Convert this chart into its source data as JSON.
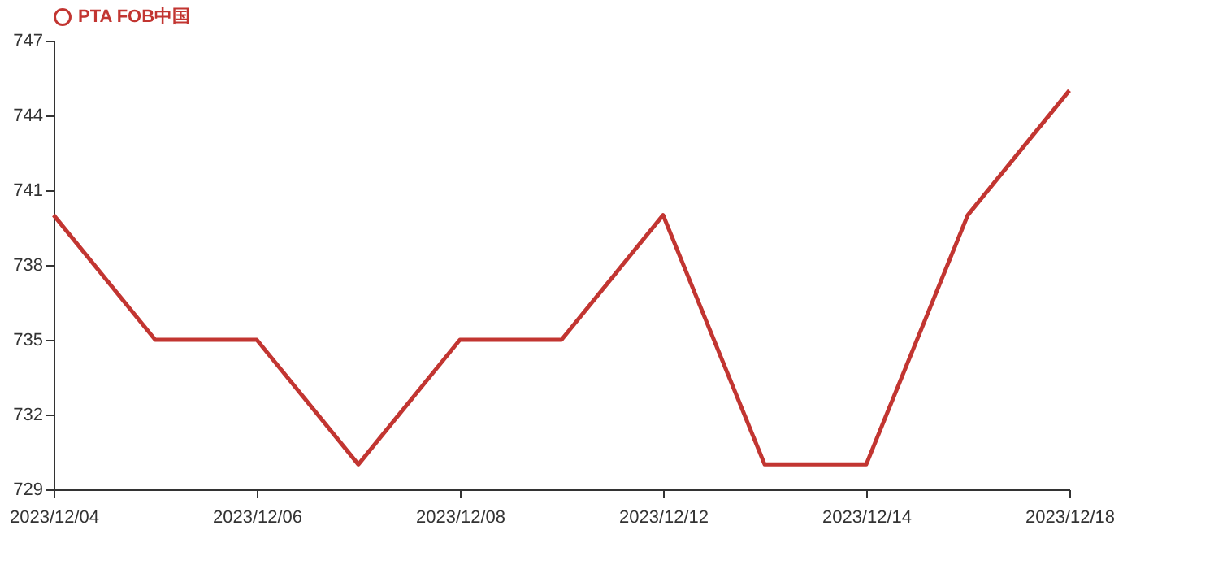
{
  "chart_data": {
    "type": "line",
    "categories": [
      "2023/12/04",
      null,
      "2023/12/06",
      null,
      "2023/12/08",
      null,
      "2023/12/12",
      null,
      "2023/12/14",
      null,
      "2023/12/18"
    ],
    "series": [
      {
        "name": "PTA FOB中国",
        "color": "#c23531",
        "values": [
          740,
          735,
          735,
          730,
          735,
          735,
          740,
          730,
          730,
          740,
          745
        ]
      }
    ],
    "ylim": [
      729,
      747
    ],
    "yticks": [
      729,
      732,
      735,
      738,
      741,
      744,
      747
    ],
    "grid": false,
    "legend": "top",
    "line_style": "solid"
  }
}
